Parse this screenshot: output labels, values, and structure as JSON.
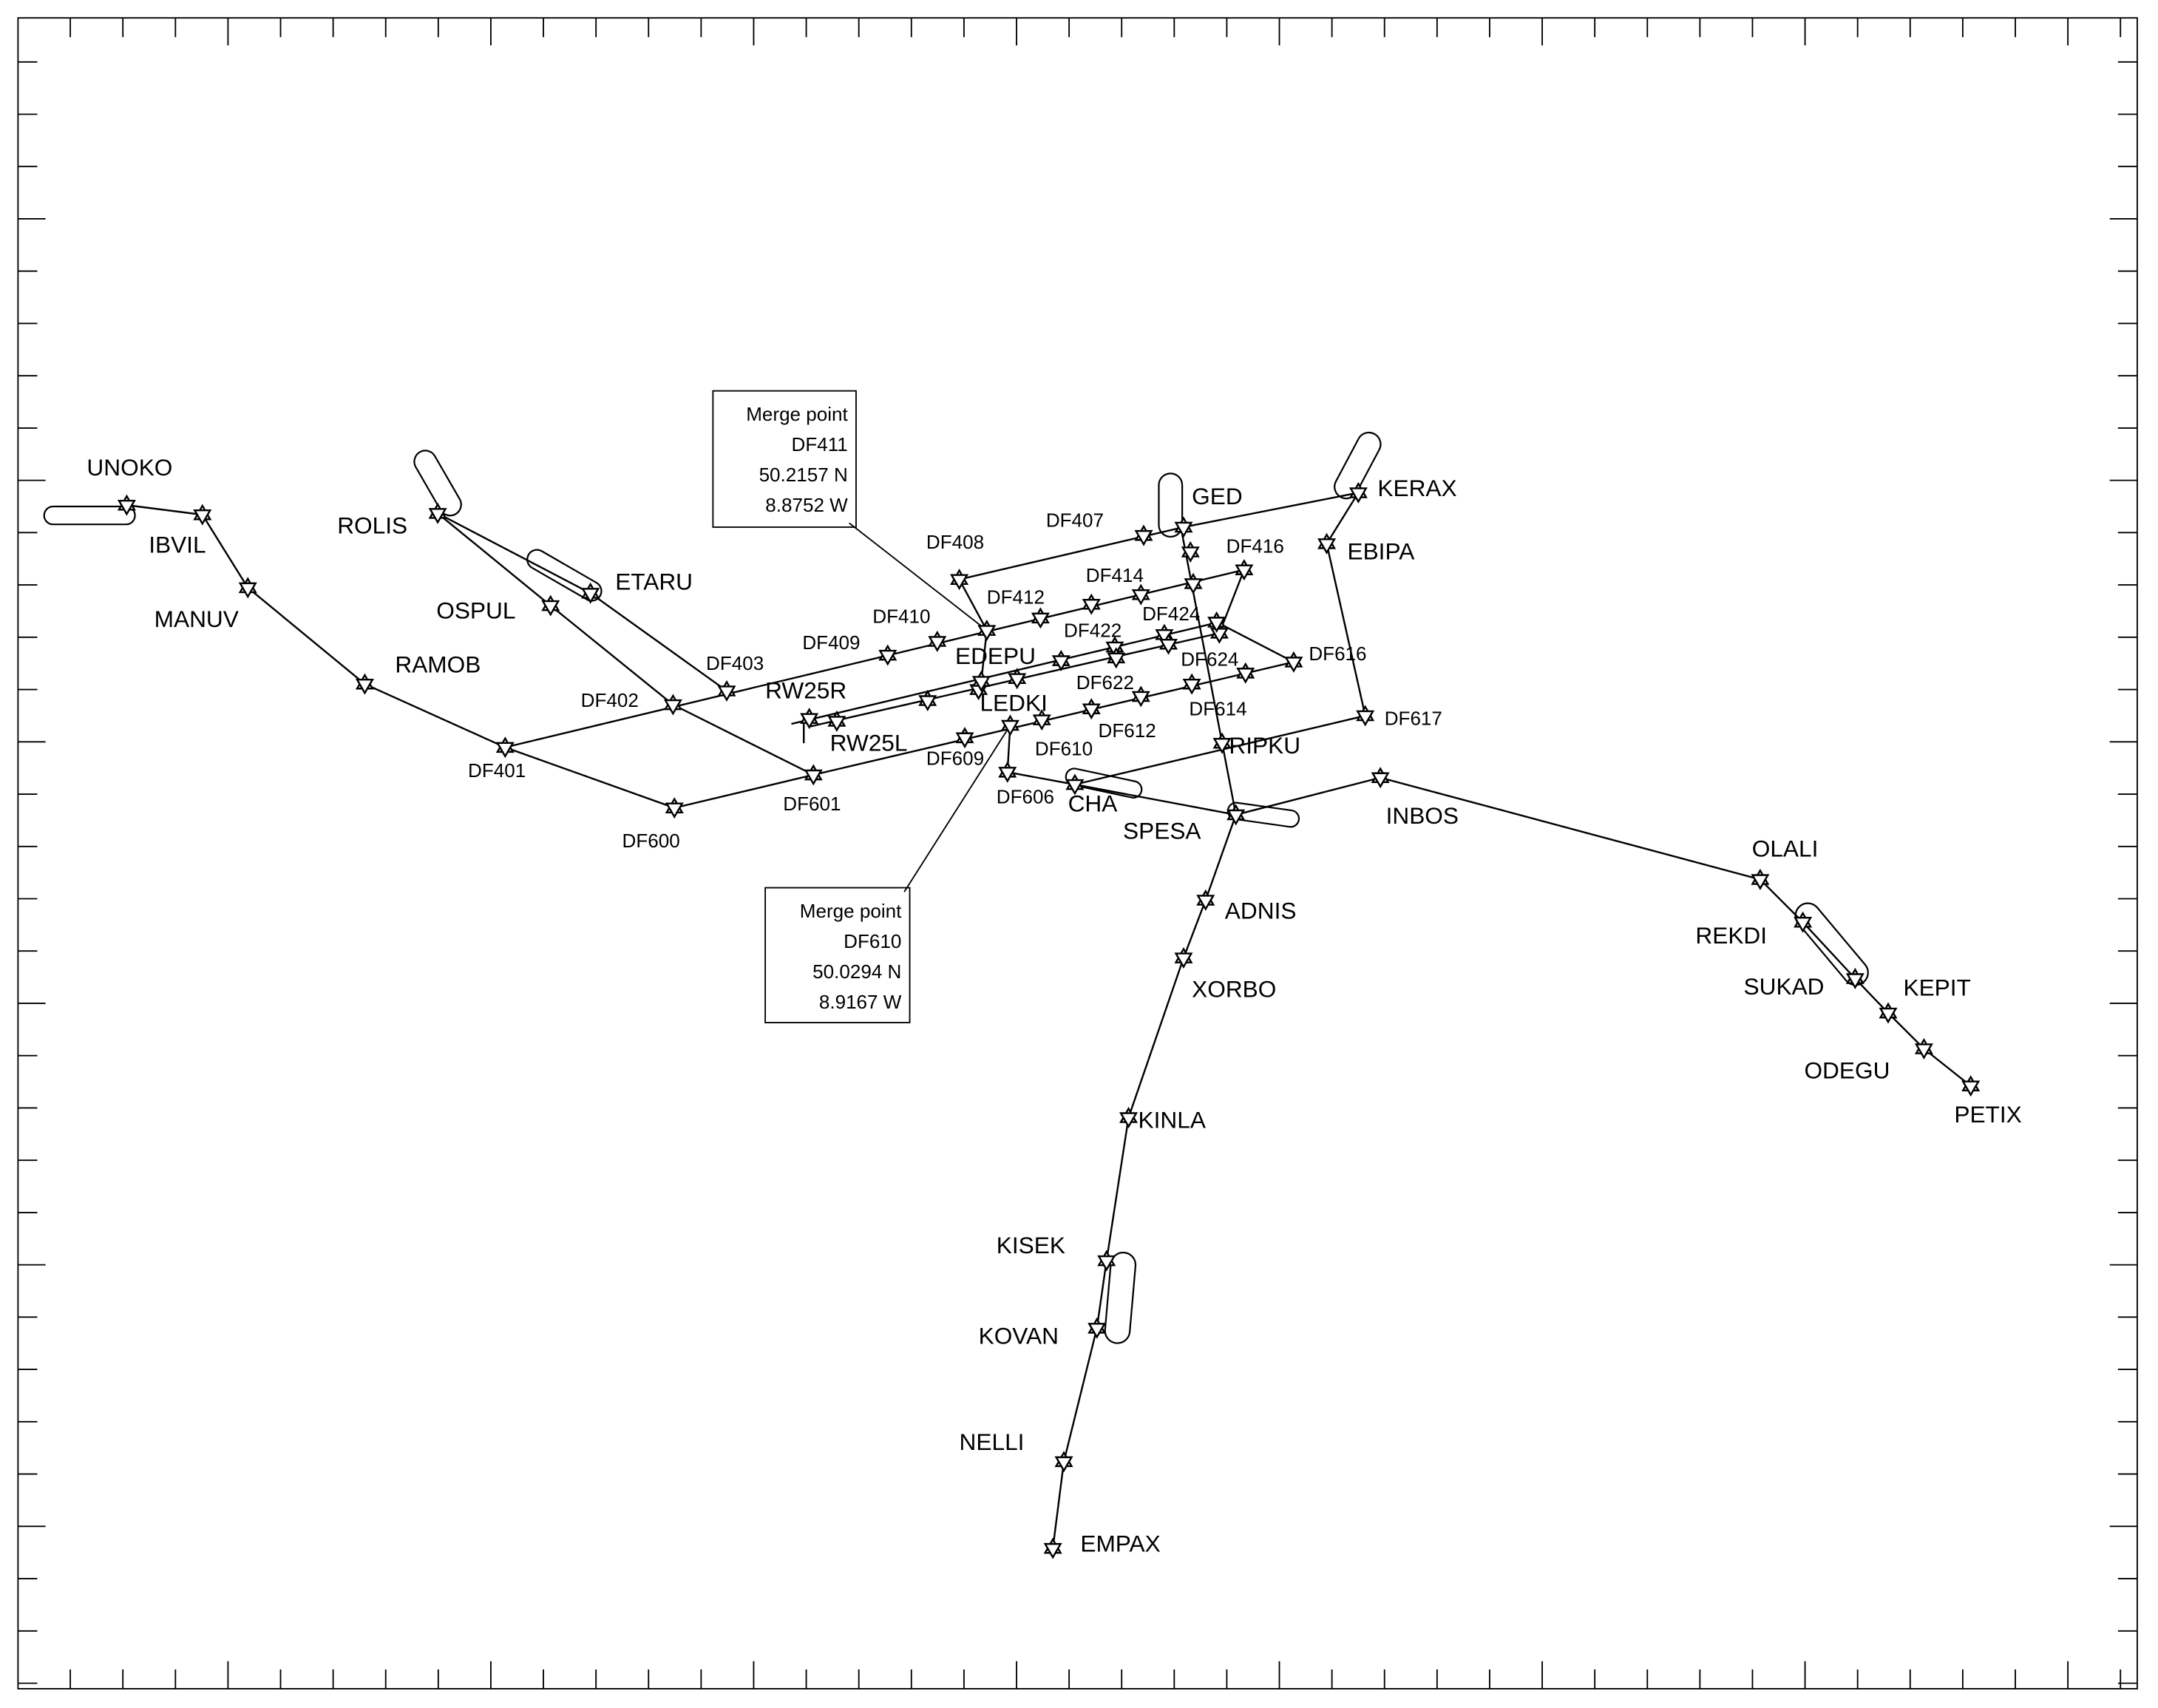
{
  "waypoints": [
    {
      "label": "UNOKO"
    },
    {
      "label": "IBVIL"
    },
    {
      "label": "MANUV"
    },
    {
      "label": "RAMOB"
    },
    {
      "label": "ROLIS"
    },
    {
      "label": "ETARU"
    },
    {
      "label": "OSPUL"
    },
    {
      "label": "DF403"
    },
    {
      "label": "DF402"
    },
    {
      "label": "DF401"
    },
    {
      "label": "DF600"
    },
    {
      "label": "DF601"
    },
    {
      "label": "RW25R"
    },
    {
      "label": "RW25L"
    },
    {
      "label": "DF609"
    },
    {
      "label": "DF410"
    },
    {
      "label": "DF409"
    },
    {
      "label": "DF408"
    },
    {
      "label": "DF407"
    },
    {
      "label": "DF412"
    },
    {
      "label": "EDEPU"
    },
    {
      "label": "DF414"
    },
    {
      "label": "DF416"
    },
    {
      "label": "DF422"
    },
    {
      "label": "DF424"
    },
    {
      "label": "DF616"
    },
    {
      "label": "DF624"
    },
    {
      "label": "DF622"
    },
    {
      "label": "DF614"
    },
    {
      "label": "DF612"
    },
    {
      "label": "DF610"
    },
    {
      "label": "LEDKI"
    },
    {
      "label": "DF606"
    },
    {
      "label": "CHA"
    },
    {
      "label": "SPESA"
    },
    {
      "label": "RIPKU"
    },
    {
      "label": "DF617"
    },
    {
      "label": "EBIPA"
    },
    {
      "label": "KERAX"
    },
    {
      "label": "GED"
    },
    {
      "label": "INBOS"
    },
    {
      "label": "ADNIS"
    },
    {
      "label": "XORBO"
    },
    {
      "label": "KINLA"
    },
    {
      "label": "KISEK"
    },
    {
      "label": "KOVAN"
    },
    {
      "label": "NELLI"
    },
    {
      "label": "EMPAX"
    },
    {
      "label": "OLALI"
    },
    {
      "label": "REKDI"
    },
    {
      "label": "SUKAD"
    },
    {
      "label": "KEPIT"
    },
    {
      "label": "ODEGU"
    },
    {
      "label": "PETIX"
    }
  ],
  "merge_points": [
    {
      "title": "Merge point",
      "name": "DF411",
      "lat": "50.2157 N",
      "lon": "8.8752 W"
    },
    {
      "title": "Merge point",
      "name": "DF610",
      "lat": "50.0294 N",
      "lon": "8.9167 W"
    }
  ]
}
